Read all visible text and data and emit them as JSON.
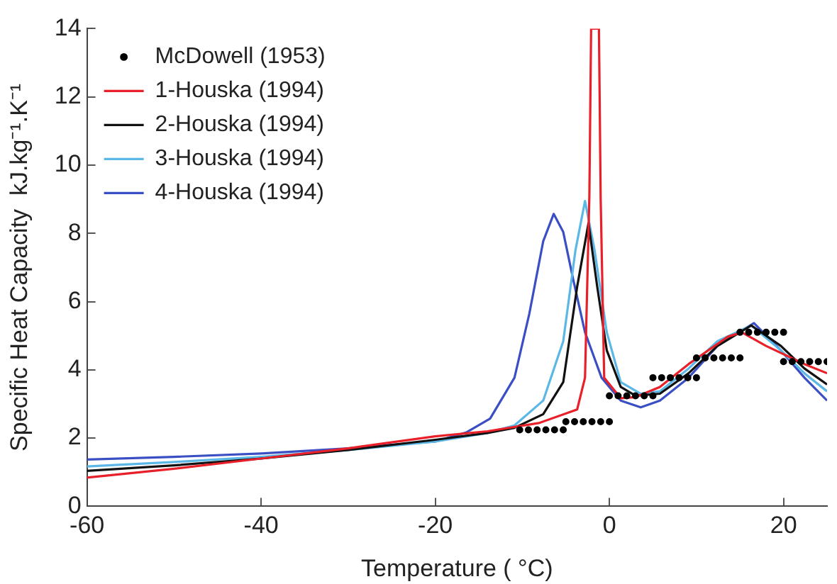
{
  "chart_data": {
    "type": "line",
    "xlabel": "Temperature ( °C)",
    "ylabel": "Specific Heat Capacity  kJ.kg⁻¹.K⁻¹",
    "xlim": [
      -60,
      25
    ],
    "xticks": [
      -60,
      -40,
      -20,
      0,
      20
    ],
    "ylim": [
      0,
      14
    ],
    "yticks": [
      0,
      2,
      4,
      6,
      8,
      10,
      12,
      14
    ],
    "grid": false,
    "legend": "top left",
    "line_style": "solid",
    "series": [
      {
        "name": "McDowell (1953)",
        "type": "scatter",
        "marker": "circle",
        "color": "#000000",
        "x": [
          -10.3,
          -9.3,
          -8.3,
          -7.3,
          -6.3,
          -5.3,
          -5,
          -4,
          -3,
          -2,
          -1,
          0,
          0,
          1,
          2,
          3,
          4,
          5,
          5,
          6,
          7,
          8,
          9,
          10,
          10,
          11,
          12,
          13,
          14,
          15,
          15,
          16,
          17,
          18,
          19,
          20,
          20,
          21,
          22,
          23,
          24,
          25
        ],
        "values": [
          2.24,
          2.24,
          2.24,
          2.24,
          2.24,
          2.24,
          2.48,
          2.48,
          2.48,
          2.48,
          2.48,
          2.48,
          3.24,
          3.24,
          3.24,
          3.24,
          3.24,
          3.24,
          3.77,
          3.77,
          3.77,
          3.77,
          3.77,
          3.77,
          4.35,
          4.35,
          4.35,
          4.35,
          4.35,
          4.35,
          5.1,
          5.1,
          5.1,
          5.1,
          5.1,
          5.1,
          4.24,
          4.24,
          4.24,
          4.24,
          4.24,
          4.24
        ]
      },
      {
        "name": "1-Houska (1994)",
        "color": "#e8202a",
        "x": [
          -60,
          -50,
          -40,
          -30,
          -20,
          -14,
          -8.1,
          -3.7,
          -2.8,
          -2.3,
          -2.1,
          -1.2,
          -1,
          -0.6,
          1.3,
          3,
          5.8,
          9.1,
          13.6,
          15.2,
          18,
          22.4,
          25
        ],
        "values": [
          0.84,
          1.1,
          1.4,
          1.7,
          2.05,
          2.2,
          2.44,
          2.84,
          3.77,
          9.1,
          14,
          14,
          9,
          3.77,
          3.17,
          3.2,
          3.5,
          4.17,
          4.97,
          5.1,
          4.7,
          4.17,
          3.9
        ]
      },
      {
        "name": "2-Houska (1994)",
        "color": "#111111",
        "x": [
          -60,
          -50,
          -40,
          -30,
          -20,
          -14,
          -10.9,
          -7.6,
          -5.3,
          -3.7,
          -2.4,
          -1.4,
          -0.3,
          1.3,
          3,
          5.8,
          9.1,
          12.4,
          16.3,
          19.7,
          22.4,
          25
        ],
        "values": [
          1.04,
          1.2,
          1.4,
          1.65,
          1.95,
          2.15,
          2.3,
          2.7,
          3.64,
          6.44,
          8.3,
          6.44,
          4.57,
          3.5,
          3.24,
          3.3,
          3.9,
          4.7,
          5.3,
          4.7,
          4.04,
          3.57
        ]
      },
      {
        "name": "3-Houska (1994)",
        "color": "#5bb8e6",
        "x": [
          -60,
          -50,
          -40,
          -30,
          -20,
          -14,
          -10.9,
          -7.6,
          -5.3,
          -3.9,
          -2.8,
          -1.7,
          -0.3,
          1.3,
          3.6,
          5.8,
          9.1,
          12.4,
          16.3,
          19.7,
          22.4,
          25
        ],
        "values": [
          1.17,
          1.3,
          1.45,
          1.65,
          1.9,
          2.15,
          2.37,
          3.1,
          4.84,
          7.5,
          8.95,
          7.5,
          5.1,
          3.64,
          3.3,
          3.37,
          4.04,
          4.84,
          5.3,
          4.57,
          3.9,
          3.37
        ]
      },
      {
        "name": "4-Houska (1994)",
        "color": "#3b4fc4",
        "x": [
          -60,
          -50,
          -40,
          -30,
          -20,
          -16.4,
          -13.7,
          -10.9,
          -9.2,
          -7.6,
          -6.4,
          -5.3,
          -4.2,
          -2.8,
          -0.9,
          1.3,
          3.6,
          5.8,
          9.1,
          12.4,
          16.6,
          19.7,
          22.4,
          25
        ],
        "values": [
          1.37,
          1.45,
          1.55,
          1.7,
          1.9,
          2.17,
          2.57,
          3.77,
          5.64,
          7.77,
          8.57,
          8.04,
          6.7,
          5.1,
          3.77,
          3.1,
          2.9,
          3.1,
          3.77,
          4.7,
          5.37,
          4.57,
          3.77,
          3.1
        ]
      }
    ]
  }
}
